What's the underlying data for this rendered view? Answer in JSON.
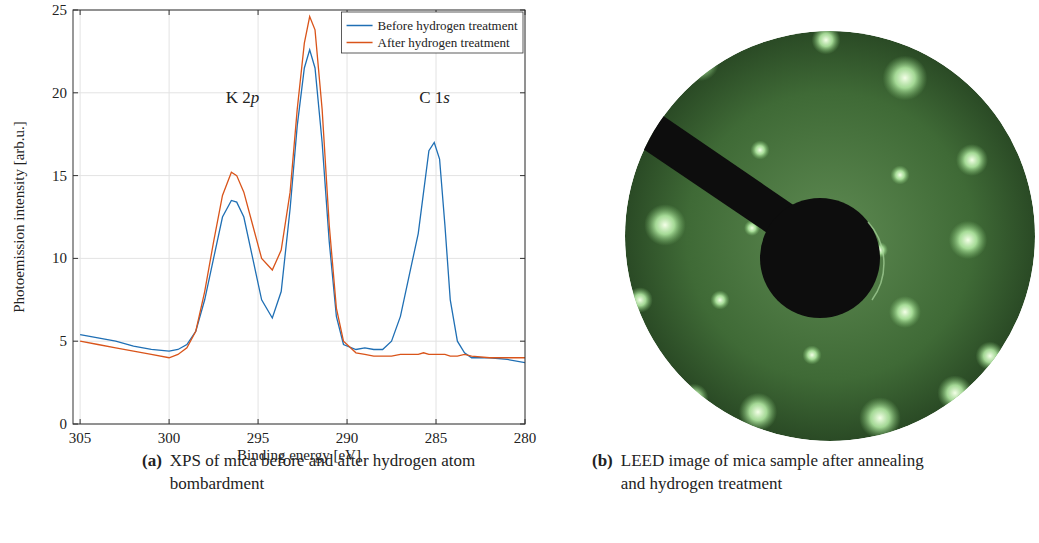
{
  "chart_data": {
    "type": "line",
    "x_label": "Binding energy [eV]",
    "y_label": "Photoemission intensity [arb.u.]",
    "xlim": [
      305.4,
      280
    ],
    "ylim": [
      0,
      25
    ],
    "xticks": [
      305,
      300,
      295,
      290,
      285,
      280
    ],
    "yticks": [
      0,
      5,
      10,
      15,
      20,
      25
    ],
    "grid": true,
    "legend": "upper right",
    "annotations": [
      "K 2p",
      "C 1s"
    ],
    "x": [
      305,
      304,
      303,
      302,
      301,
      300,
      299.5,
      299,
      298.5,
      298,
      297.5,
      297,
      296.5,
      296.2,
      295.8,
      295.3,
      294.8,
      294.2,
      293.7,
      293.2,
      292.8,
      292.4,
      292.1,
      291.8,
      291.4,
      291.0,
      290.6,
      290.2,
      289.5,
      289,
      288.5,
      288,
      287.5,
      287,
      286.5,
      286,
      285.7,
      285.4,
      285.1,
      284.8,
      284.5,
      284.2,
      283.8,
      283.4,
      283,
      282,
      281,
      280
    ],
    "series": [
      {
        "name": "Before hydrogen treatment",
        "color": "#1f6fb4",
        "line_style": "solid",
        "values": [
          5.4,
          5.2,
          5.0,
          4.7,
          4.5,
          4.4,
          4.5,
          4.8,
          5.6,
          7.5,
          10,
          12.5,
          13.5,
          13.4,
          12.5,
          10,
          7.5,
          6.4,
          8,
          13,
          18,
          21.5,
          22.6,
          21.5,
          17,
          11,
          6.5,
          4.8,
          4.5,
          4.6,
          4.5,
          4.5,
          5.0,
          6.5,
          9,
          11.5,
          14,
          16.5,
          17,
          16,
          12,
          7.5,
          5,
          4.3,
          4.0,
          4.0,
          3.9,
          3.7
        ]
      },
      {
        "name": "After hydrogen treatment",
        "color": "#d9541a",
        "line_style": "solid",
        "values": [
          5.0,
          4.8,
          4.6,
          4.4,
          4.2,
          4.0,
          4.2,
          4.6,
          5.6,
          8,
          11,
          13.8,
          15.2,
          15.0,
          14,
          12,
          10,
          9.3,
          10.5,
          14,
          19,
          23,
          24.6,
          23.8,
          19,
          12,
          7,
          5,
          4.3,
          4.2,
          4.1,
          4.1,
          4.1,
          4.2,
          4.2,
          4.2,
          4.3,
          4.2,
          4.2,
          4.2,
          4.2,
          4.1,
          4.1,
          4.2,
          4.1,
          4.0,
          4.0,
          4.0
        ]
      }
    ]
  },
  "captions": [
    {
      "label": "(a)",
      "text": "XPS of mica before and after hydrogen atom bombardment"
    },
    {
      "label": "(b)",
      "text": "LEED image of mica sample after annealing and hydrogen treatment"
    }
  ]
}
